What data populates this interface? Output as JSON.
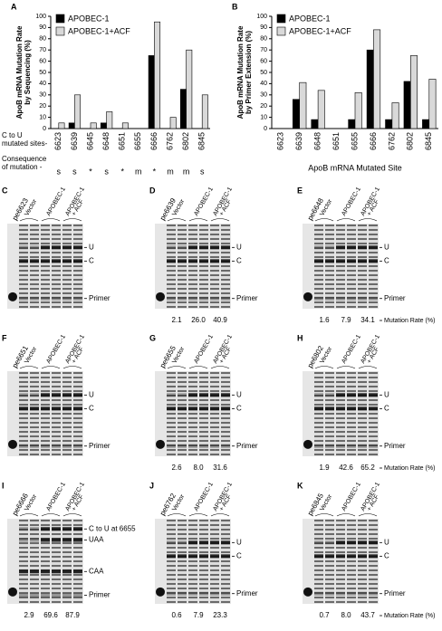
{
  "chart_data": [
    {
      "type": "bar",
      "panel": "A",
      "ylabel": [
        "ApoB mRNA Mutation Rate",
        "by Sequencing (%)"
      ],
      "categories": [
        "6623",
        "6639",
        "6645",
        "6648",
        "6651",
        "6655",
        "6666",
        "6762",
        "6802",
        "6845"
      ],
      "series": [
        {
          "name": "APOBEC-1",
          "color": "#000000",
          "values": [
            0,
            5,
            0,
            5,
            0,
            0,
            65,
            0,
            35,
            0
          ]
        },
        {
          "name": "APOBEC-1+ACF",
          "color": "#d9d9d9",
          "values": [
            5,
            30,
            5,
            15,
            5,
            0,
            95,
            10,
            70,
            30
          ]
        }
      ],
      "ylim": [
        0,
        100
      ],
      "yticks": [
        0,
        10,
        20,
        30,
        40,
        50,
        60,
        70,
        80,
        90,
        100
      ],
      "row_labels": [
        [
          "C to U",
          "mutated sites-"
        ],
        [
          "Consequence",
          "of mutation -"
        ]
      ],
      "consequences": [
        "s",
        "s",
        "*",
        "s",
        "*",
        "m",
        "*",
        "m",
        "m",
        "s"
      ]
    },
    {
      "type": "bar",
      "panel": "B",
      "ylabel": [
        "ApoB mRNA Mutation Rate",
        "by Primer Extension (%)"
      ],
      "xlabel": "ApoB mRNA Mutated Site",
      "categories": [
        "6623",
        "6639",
        "6648",
        "6651",
        "6655",
        "6666",
        "6762",
        "6802",
        "6845"
      ],
      "series": [
        {
          "name": "APOBEC-1",
          "color": "#000000",
          "values": [
            0,
            26,
            8,
            0,
            8,
            70,
            8,
            42,
            8
          ]
        },
        {
          "name": "APOBEC-1+ACF",
          "color": "#d9d9d9",
          "values": [
            0,
            41,
            34,
            0,
            32,
            88,
            23,
            65,
            44
          ]
        }
      ],
      "ylim": [
        0,
        100
      ],
      "yticks": [
        0,
        10,
        20,
        30,
        40,
        50,
        60,
        70,
        80,
        90,
        100
      ]
    }
  ],
  "gels": [
    {
      "panel": "C",
      "probe": "pe6623",
      "lanes": [
        "Vector",
        "APOBEC-1"
      ],
      "acf": [
        "APOBEC-1",
        "+ ACF"
      ],
      "bands": [
        "U",
        "C",
        "Primer"
      ],
      "rates": []
    },
    {
      "panel": "D",
      "probe": "pe6639",
      "lanes": [
        "Vector",
        "APOBEC-1"
      ],
      "acf": [
        "APOBEC-1",
        "+ ACF"
      ],
      "bands": [
        "U",
        "C",
        "Primer"
      ],
      "rates": [
        "2.1",
        "26.0",
        "40.9"
      ]
    },
    {
      "panel": "E",
      "probe": "pe6648",
      "lanes": [
        "Vector",
        "APOBEC-1"
      ],
      "acf": [
        "APOBEC-1",
        "+ ACF"
      ],
      "bands": [
        "U",
        "C",
        "Primer"
      ],
      "rates": [
        "1.6",
        "7.9",
        "34.1"
      ],
      "rate_label": "Mutation Rate (%)"
    },
    {
      "panel": "F",
      "probe": "pe6651",
      "lanes": [
        "Vector",
        "APOBEC-1"
      ],
      "acf": [
        "APOBEC-1",
        "+ ACF"
      ],
      "bands": [
        "U",
        "C",
        "Primer"
      ],
      "rates": []
    },
    {
      "panel": "G",
      "probe": "pe6655",
      "lanes": [
        "Vector",
        "APOBEC-1"
      ],
      "acf": [
        "APOBEC-1",
        "+ ACF"
      ],
      "bands": [
        "U",
        "C",
        "Primer"
      ],
      "rates": [
        "2.6",
        "8.0",
        "31.6"
      ]
    },
    {
      "panel": "H",
      "probe": "pe6802",
      "lanes": [
        "Vector",
        "APOBEC-1"
      ],
      "acf": [
        "APOBEC-1",
        "+ ACF"
      ],
      "bands": [
        "U",
        "C",
        "Primer"
      ],
      "rates": [
        "1.9",
        "42.6",
        "65.2"
      ],
      "rate_label": "Mutation Rate (%)"
    },
    {
      "panel": "I",
      "probe": "pe6666",
      "lanes": [
        "Vector",
        "APOBEC-1"
      ],
      "acf": [
        "APOBEC-1",
        "+ ACF"
      ],
      "bands": [
        "C to U at 6655",
        "UAA",
        "CAA",
        "Primer"
      ],
      "rates": [
        "2.9",
        "69.6",
        "87.9"
      ]
    },
    {
      "panel": "J",
      "probe": "pe6762",
      "lanes": [
        "Vector",
        "APOBEC-1"
      ],
      "acf": [
        "APOBEC-1",
        "+ ACF"
      ],
      "bands": [
        "U",
        "C",
        "Primer"
      ],
      "rates": [
        "0.6",
        "7.9",
        "23.3"
      ]
    },
    {
      "panel": "K",
      "probe": "pe6845",
      "lanes": [
        "Vector",
        "APOBEC-1"
      ],
      "acf": [
        "APOBEC-1",
        "+ ACF"
      ],
      "bands": [
        "U",
        "C",
        "Primer"
      ],
      "rates": [
        "0.7",
        "8.0",
        "43.7"
      ],
      "rate_label": "Mutation Rate (%)"
    }
  ]
}
